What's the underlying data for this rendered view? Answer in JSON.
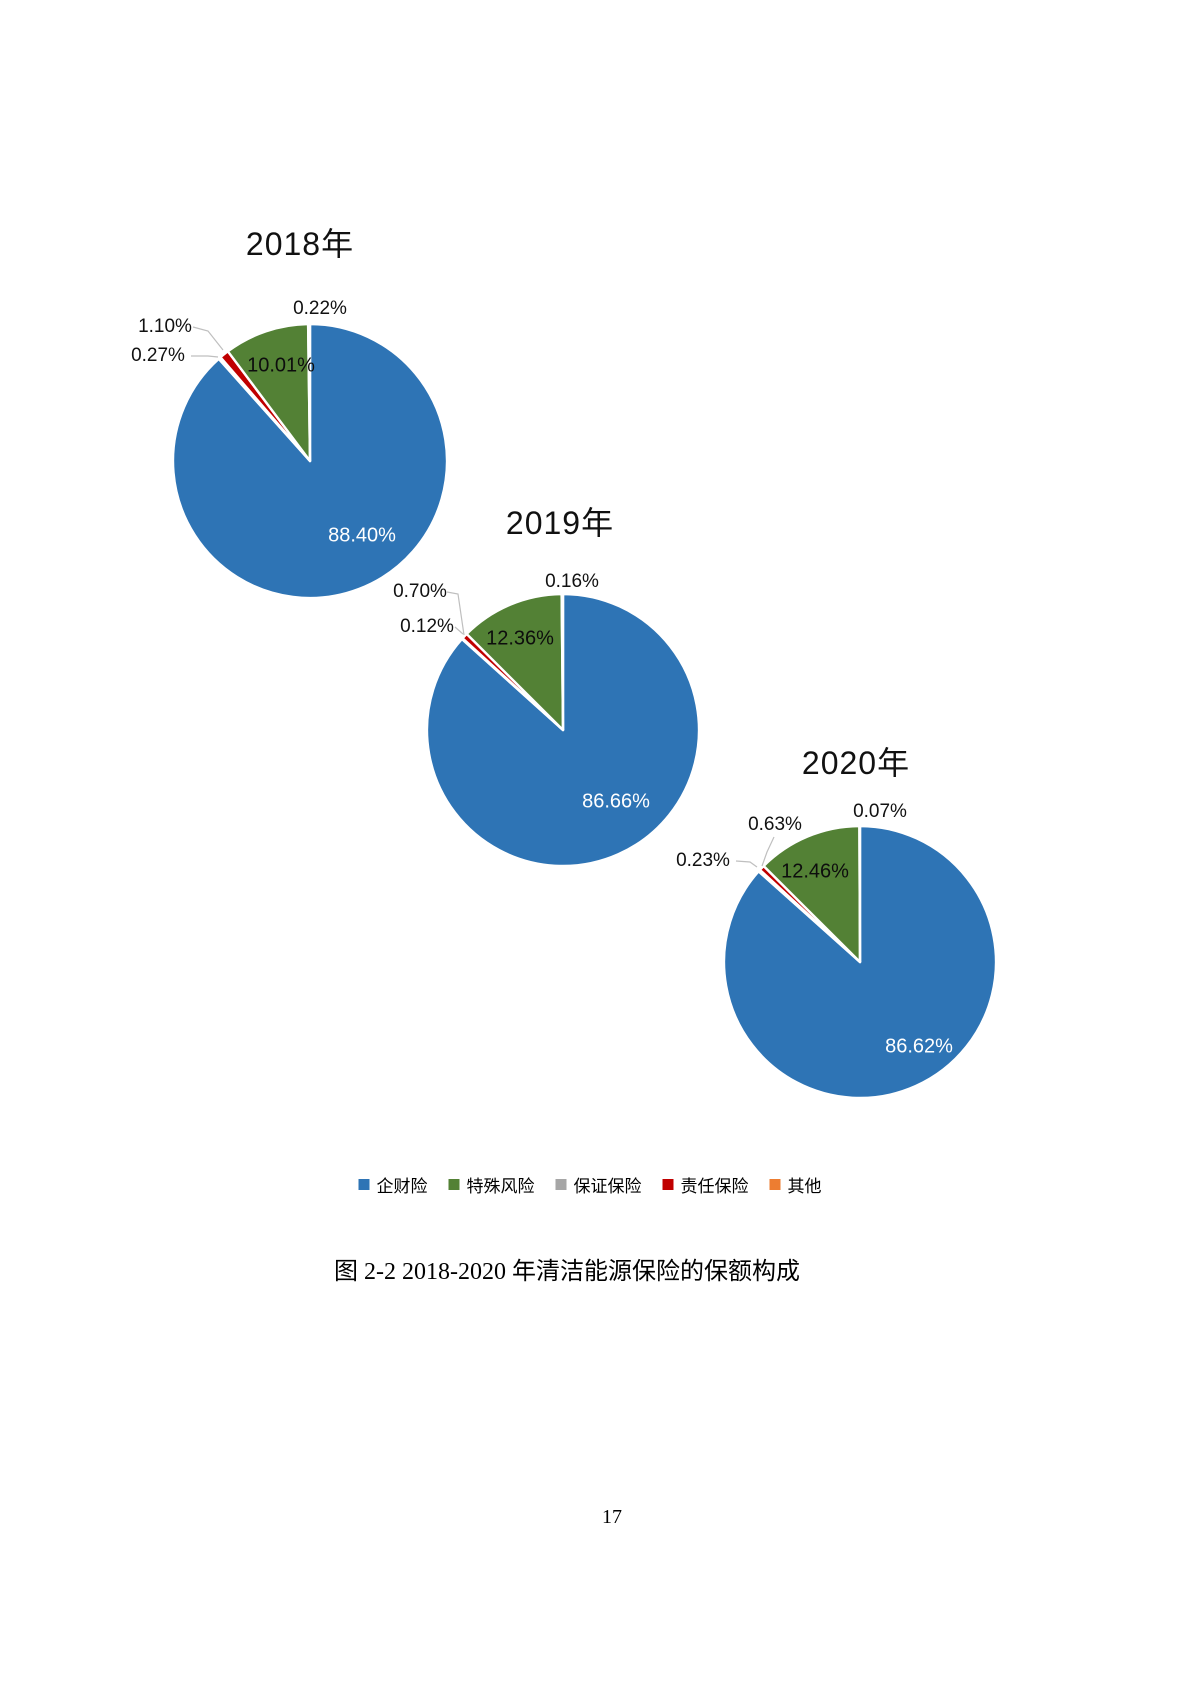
{
  "page": {
    "number": "17"
  },
  "figure_caption": "图 2-2  2018-2020 年清洁能源保险的保额构成",
  "colors": {
    "property": "#2E74B5",
    "special_risk": "#538135",
    "surety": "#A6A6A6",
    "liability": "#C00000",
    "other": "#ED7D31",
    "leader_line": "#BFBFBF",
    "slice_border": "#FFFFFF"
  },
  "legend": {
    "position": "bottom-center",
    "items": [
      {
        "label": "企财险",
        "color": "#2E74B5"
      },
      {
        "label": "特殊风险",
        "color": "#538135"
      },
      {
        "label": "保证保险",
        "color": "#A6A6A6"
      },
      {
        "label": "责任保险",
        "color": "#C00000"
      },
      {
        "label": "其他",
        "color": "#ED7D31"
      }
    ]
  },
  "chart_data": [
    {
      "type": "pie",
      "title": "2018年",
      "unit": "%",
      "start_angle_deg": 0,
      "direction": "clockwise",
      "slices": [
        {
          "name": "企财险",
          "value": 88.4,
          "label": "88.40%",
          "color": "#2E74B5",
          "label_placement": "inside"
        },
        {
          "name": "保证保险",
          "value": 0.27,
          "label": "0.27%",
          "color": "#A6A6A6",
          "label_placement": "outside"
        },
        {
          "name": "责任保险",
          "value": 1.1,
          "label": "1.10%",
          "color": "#C00000",
          "label_placement": "outside"
        },
        {
          "name": "特殊风险",
          "value": 10.01,
          "label": "10.01%",
          "color": "#538135",
          "label_placement": "inside"
        },
        {
          "name": "其他",
          "value": 0.22,
          "label": "0.22%",
          "color": "#ED7D31",
          "label_placement": "outside"
        }
      ]
    },
    {
      "type": "pie",
      "title": "2019年",
      "unit": "%",
      "start_angle_deg": 0,
      "direction": "clockwise",
      "slices": [
        {
          "name": "企财险",
          "value": 86.66,
          "label": "86.66%",
          "color": "#2E74B5",
          "label_placement": "inside"
        },
        {
          "name": "保证保险",
          "value": 0.12,
          "label": "0.12%",
          "color": "#A6A6A6",
          "label_placement": "outside"
        },
        {
          "name": "责任保险",
          "value": 0.7,
          "label": "0.70%",
          "color": "#C00000",
          "label_placement": "outside"
        },
        {
          "name": "特殊风险",
          "value": 12.36,
          "label": "12.36%",
          "color": "#538135",
          "label_placement": "inside"
        },
        {
          "name": "其他",
          "value": 0.16,
          "label": "0.16%",
          "color": "#ED7D31",
          "label_placement": "outside"
        }
      ]
    },
    {
      "type": "pie",
      "title": "2020年",
      "unit": "%",
      "start_angle_deg": 0,
      "direction": "clockwise",
      "slices": [
        {
          "name": "企财险",
          "value": 86.62,
          "label": "86.62%",
          "color": "#2E74B5",
          "label_placement": "inside"
        },
        {
          "name": "保证保险",
          "value": 0.23,
          "label": "0.23%",
          "color": "#A6A6A6",
          "label_placement": "outside"
        },
        {
          "name": "责任保险",
          "value": 0.63,
          "label": "0.63%",
          "color": "#C00000",
          "label_placement": "outside"
        },
        {
          "name": "特殊风险",
          "value": 12.46,
          "label": "12.46%",
          "color": "#538135",
          "label_placement": "inside"
        },
        {
          "name": "其他",
          "value": 0.07,
          "label": "0.07%",
          "color": "#ED7D31",
          "label_placement": "outside"
        }
      ]
    }
  ]
}
